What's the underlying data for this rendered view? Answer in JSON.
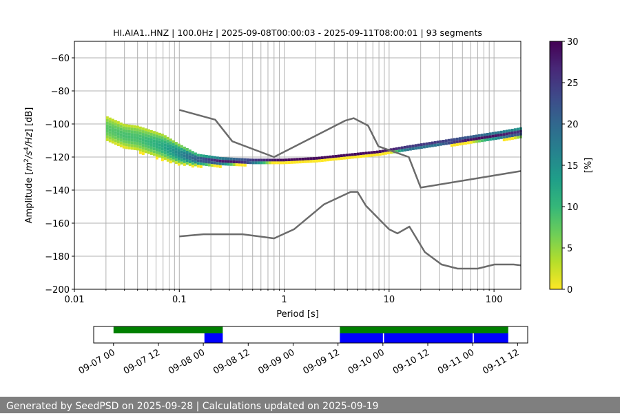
{
  "chart_data": [
    {
      "type": "heatmap",
      "title": "HI.AIA1..HNZ | 100.0Hz | 2025-09-08T00:00:03 - 2025-09-11T08:00:01 | 93 segments",
      "xlabel": "Period [s]",
      "ylabel_parts": [
        "Amplitude [",
        "m",
        "2",
        "/",
        "s",
        "4",
        "/",
        "Hz",
        "] [dB]"
      ],
      "xscale": "log",
      "xlim": [
        0.01,
        180
      ],
      "ylim": [
        -200,
        -50
      ],
      "x_ticks": [
        {
          "value": 0.01,
          "label": "0.01"
        },
        {
          "value": 0.1,
          "label": "0.1"
        },
        {
          "value": 1,
          "label": "1"
        },
        {
          "value": 10,
          "label": "10"
        },
        {
          "value": 100,
          "label": "100"
        }
      ],
      "y_ticks": [
        {
          "value": -60,
          "label": "−60"
        },
        {
          "value": -80,
          "label": "−80"
        },
        {
          "value": -100,
          "label": "−100"
        },
        {
          "value": -120,
          "label": "−120"
        },
        {
          "value": -140,
          "label": "−140"
        },
        {
          "value": -160,
          "label": "−160"
        },
        {
          "value": -180,
          "label": "−180"
        },
        {
          "value": -200,
          "label": "−200"
        }
      ],
      "grid": true,
      "colorbar": {
        "label": "[%]",
        "range": [
          0,
          30
        ],
        "ticks": [
          {
            "value": 0,
            "label": "0"
          },
          {
            "value": 5,
            "label": "5"
          },
          {
            "value": 10,
            "label": "10"
          },
          {
            "value": 15,
            "label": "15"
          },
          {
            "value": 20,
            "label": "20"
          },
          {
            "value": 25,
            "label": "25"
          },
          {
            "value": 30,
            "label": "30"
          }
        ],
        "colors": [
          "#fde725",
          "#b5de2b",
          "#6ece58",
          "#35b779",
          "#1f9e89",
          "#26828e",
          "#31688e",
          "#3e4989",
          "#482878",
          "#440154"
        ]
      },
      "psd_bands": [
        {
          "x": 0.02,
          "low": -110,
          "high": -95,
          "peak": 8
        },
        {
          "x": 0.03,
          "low": -114,
          "high": -100,
          "peak": 9
        },
        {
          "x": 0.04,
          "low": -116,
          "high": -101,
          "peak": 9
        },
        {
          "x": 0.05,
          "low": -118,
          "high": -103,
          "peak": 10
        },
        {
          "x": 0.07,
          "low": -121,
          "high": -106,
          "peak": 12
        },
        {
          "x": 0.1,
          "low": -124,
          "high": -112,
          "peak": 16
        },
        {
          "x": 0.15,
          "low": -125,
          "high": -118,
          "peak": 22
        },
        {
          "x": 0.25,
          "low": -125,
          "high": -120,
          "peak": 28
        },
        {
          "x": 0.5,
          "low": -124,
          "high": -121,
          "peak": 30
        },
        {
          "x": 1,
          "low": -123,
          "high": -121,
          "peak": 30
        },
        {
          "x": 2,
          "low": -122,
          "high": -120,
          "peak": 30
        },
        {
          "x": 4,
          "low": -120,
          "high": -118,
          "peak": 30
        },
        {
          "x": 8,
          "low": -118,
          "high": -116,
          "peak": 30
        },
        {
          "x": 15,
          "low": -116,
          "high": -113,
          "peak": 30
        },
        {
          "x": 30,
          "low": -113,
          "high": -110,
          "peak": 30
        },
        {
          "x": 60,
          "low": -111,
          "high": -107,
          "peak": 30
        },
        {
          "x": 120,
          "low": -109,
          "high": -104,
          "peak": 28
        },
        {
          "x": 180,
          "low": -108,
          "high": -102,
          "peak": 26
        }
      ],
      "noise_models": [
        {
          "name": "high noise model",
          "points": [
            [
              0.1,
              -91.5
            ],
            [
              0.22,
              -97.4
            ],
            [
              0.32,
              -110.5
            ],
            [
              0.8,
              -120
            ],
            [
              3.8,
              -98
            ],
            [
              4.6,
              -96.5
            ],
            [
              6.3,
              -101
            ],
            [
              7.9,
              -113.5
            ],
            [
              15.4,
              -120
            ],
            [
              20,
              -138.5
            ],
            [
              180,
              -128.5
            ]
          ]
        },
        {
          "name": "low noise model",
          "points": [
            [
              0.1,
              -168
            ],
            [
              0.17,
              -166.7
            ],
            [
              0.4,
              -166.7
            ],
            [
              0.8,
              -169.2
            ],
            [
              1.24,
              -163.7
            ],
            [
              2.4,
              -148.6
            ],
            [
              4.3,
              -141.1
            ],
            [
              5.0,
              -141.1
            ],
            [
              6.0,
              -149.4
            ],
            [
              10,
              -163.7
            ],
            [
              12,
              -166.2
            ],
            [
              15.6,
              -162.1
            ],
            [
              21.9,
              -177.5
            ],
            [
              31.6,
              -185
            ],
            [
              45,
              -187.5
            ],
            [
              70,
              -187.5
            ],
            [
              101,
              -185
            ],
            [
              154,
              -185
            ],
            [
              180,
              -185.5
            ]
          ]
        }
      ]
    },
    {
      "type": "timeline",
      "x_tick_labels": [
        "09-07 00",
        "09-07 12",
        "09-08 00",
        "09-08 12",
        "09-09 00",
        "09-09 12",
        "09-10 00",
        "09-10 12",
        "09-11 00",
        "09-11 12"
      ],
      "x_tick_hours": [
        0,
        12,
        24,
        36,
        48,
        60,
        72,
        84,
        96,
        108
      ],
      "xlim_hours": [
        -5.3,
        110.7
      ],
      "availability_color": "#008000",
      "segment_color": "#0000ff",
      "availability": [
        [
          0,
          29.2
        ],
        [
          60.5,
          105.5
        ]
      ],
      "segments": [
        [
          24.3,
          29.2
        ],
        [
          60.5,
          72
        ],
        [
          72.3,
          96
        ],
        [
          96.3,
          105.5
        ]
      ]
    }
  ],
  "footer": {
    "text": "Generated by SeedPSD on 2025-09-28 | Calculations updated on 2025-09-19"
  }
}
